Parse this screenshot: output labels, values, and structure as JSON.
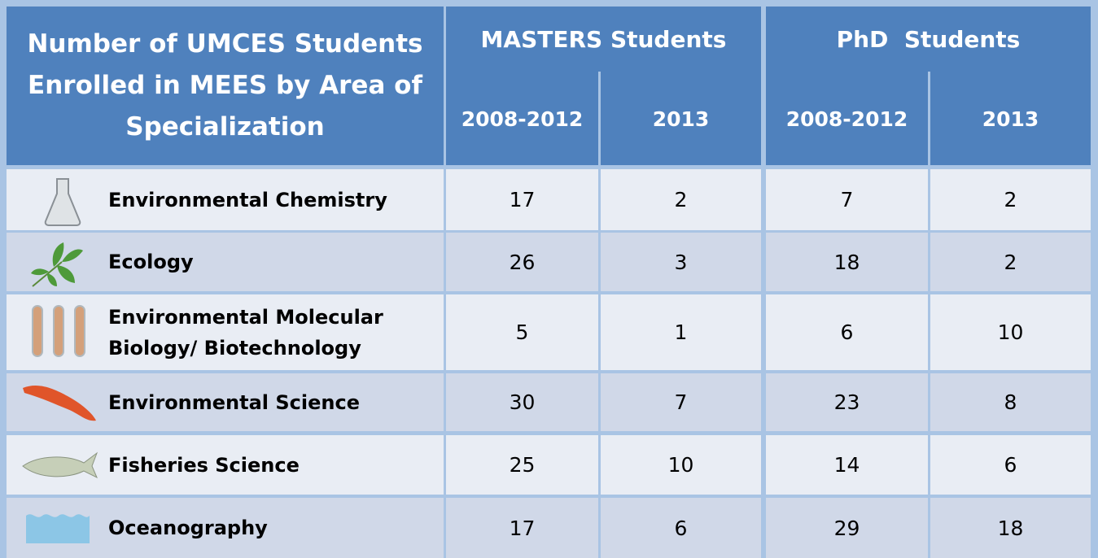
{
  "header": {
    "title": "Number of UMCES Students Enrolled in MEES by Area of Specialization",
    "groups": [
      "MASTERS Students",
      "PhD  Students"
    ],
    "subheaders": [
      "2008-2012",
      "2013",
      "2008-2012",
      "2013"
    ]
  },
  "table": {
    "rows": [
      {
        "label": "Environmental Chemistry",
        "values": [
          17,
          2,
          7,
          2
        ]
      },
      {
        "label": "Ecology",
        "values": [
          26,
          3,
          18,
          2
        ]
      },
      {
        "label": "Environmental Molecular Biology/ Biotechnology",
        "values": [
          5,
          1,
          6,
          10
        ]
      },
      {
        "label": "Environmental Science",
        "values": [
          30,
          7,
          23,
          8
        ]
      },
      {
        "label": "Fisheries Science",
        "values": [
          25,
          10,
          14,
          6
        ]
      },
      {
        "label": "Oceanography",
        "values": [
          17,
          6,
          29,
          18
        ]
      }
    ]
  }
}
